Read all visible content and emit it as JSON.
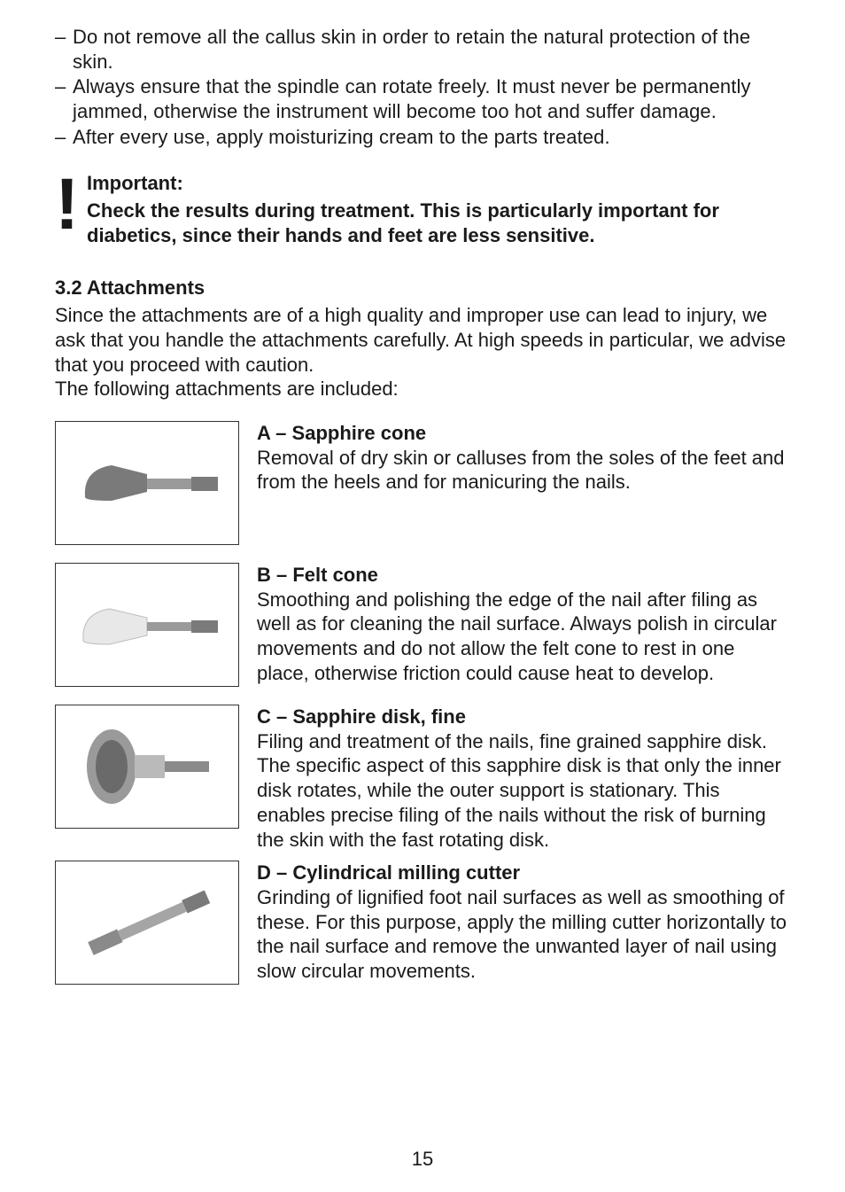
{
  "topList": [
    "Do not remove all the callus skin in order to retain the natural protection of the skin.",
    "Always ensure that the spindle can rotate freely. It must never be permanently jammed, otherwise the instrument will become too hot and suffer damage.",
    "After every use, apply moisturizing cream to the parts treated."
  ],
  "important": {
    "title": "Important:",
    "body": "Check the results during treatment. This is particularly important for diabetics, since their hands and feet are less sensitive."
  },
  "section": {
    "title": "3.2 Attachments",
    "intro1": "Since the attachments are of a high quality and improper use can lead to injury, we ask that you handle the attachments carefully. At high speeds in particular, we advise that you proceed with caution.",
    "intro2": "The following attachments are included:"
  },
  "attachments": [
    {
      "icon": "sapphire-cone",
      "label": "A – Sapphire cone",
      "text": "Removal of dry skin or calluses from the soles of the feet and from the heels and for manicuring the nails."
    },
    {
      "icon": "felt-cone",
      "label": "B – Felt cone",
      "text": "Smoothing and polishing the edge of the nail after filing as well as for cleaning the nail surface. Always polish in circular movements and do not allow the felt cone to rest in one place, otherwise friction could cause heat to develop."
    },
    {
      "icon": "sapphire-disk",
      "label": "C – Sapphire disk, fine",
      "text": "Filing and treatment of the nails, fine grained sapphire disk.\nThe specific aspect of this sapphire disk is that only the inner disk rotates, while the outer support is stationary. This enables precise filing of the nails without the risk of burning the skin with the fast rotating disk."
    },
    {
      "icon": "cylindrical-cutter",
      "label": "D – Cylindrical milling cutter",
      "text": "Grinding of lignified foot nail surfaces as well as smoothing of these. For this purpose, apply the milling cutter horizontally to the nail surface and remove the unwanted layer of nail using slow circular movements."
    }
  ],
  "pageNumber": "15",
  "svg": {
    "sapphire-cone": "<svg viewBox='0 0 200 130' width='200' height='130'><path d='M30 80 Q28 50 60 45 L100 55 L100 75 L60 85 Q28 85 30 80 Z' fill='#7a7a7a'/><rect x='100' y='60' width='50' height='12' fill='#9a9a9a'/><rect x='150' y='58' width='30' height='16' fill='#7a7a7a'/></svg>",
    "felt-cone": "<svg viewBox='0 0 200 130' width='200' height='130'><path d='M28 82 Q26 52 58 47 L100 57 L100 77 L58 87 Q26 87 28 82 Z' fill='#e8e8e8' stroke='#bcbcbc' stroke-width='1'/><rect x='100' y='62' width='50' height='10' fill='#9a9a9a'/><rect x='150' y='60' width='30' height='14' fill='#7a7a7a'/></svg>",
    "sapphire-disk": "<svg viewBox='0 0 200 130' width='200' height='130'><ellipse cx='60' cy='65' rx='28' ry='42' fill='#9a9a9a'/><ellipse cx='60' cy='65' rx='18' ry='30' fill='#6a6a6a'/><rect x='86' y='52' width='34' height='26' fill='#bababa'/><rect x='120' y='59' width='50' height='12' fill='#8a8a8a'/></svg>",
    "cylindrical-cutter": "<svg viewBox='0 0 200 130' width='200' height='130'><g transform='rotate(-24 100 65)'><rect x='30' y='58' width='36' height='16' fill='#8a8a8a'/><rect x='66' y='60' width='80' height='12' fill='#a5a5a5'/><rect x='146' y='58' width='28' height='16' fill='#7a7a7a'/></g></svg>"
  }
}
